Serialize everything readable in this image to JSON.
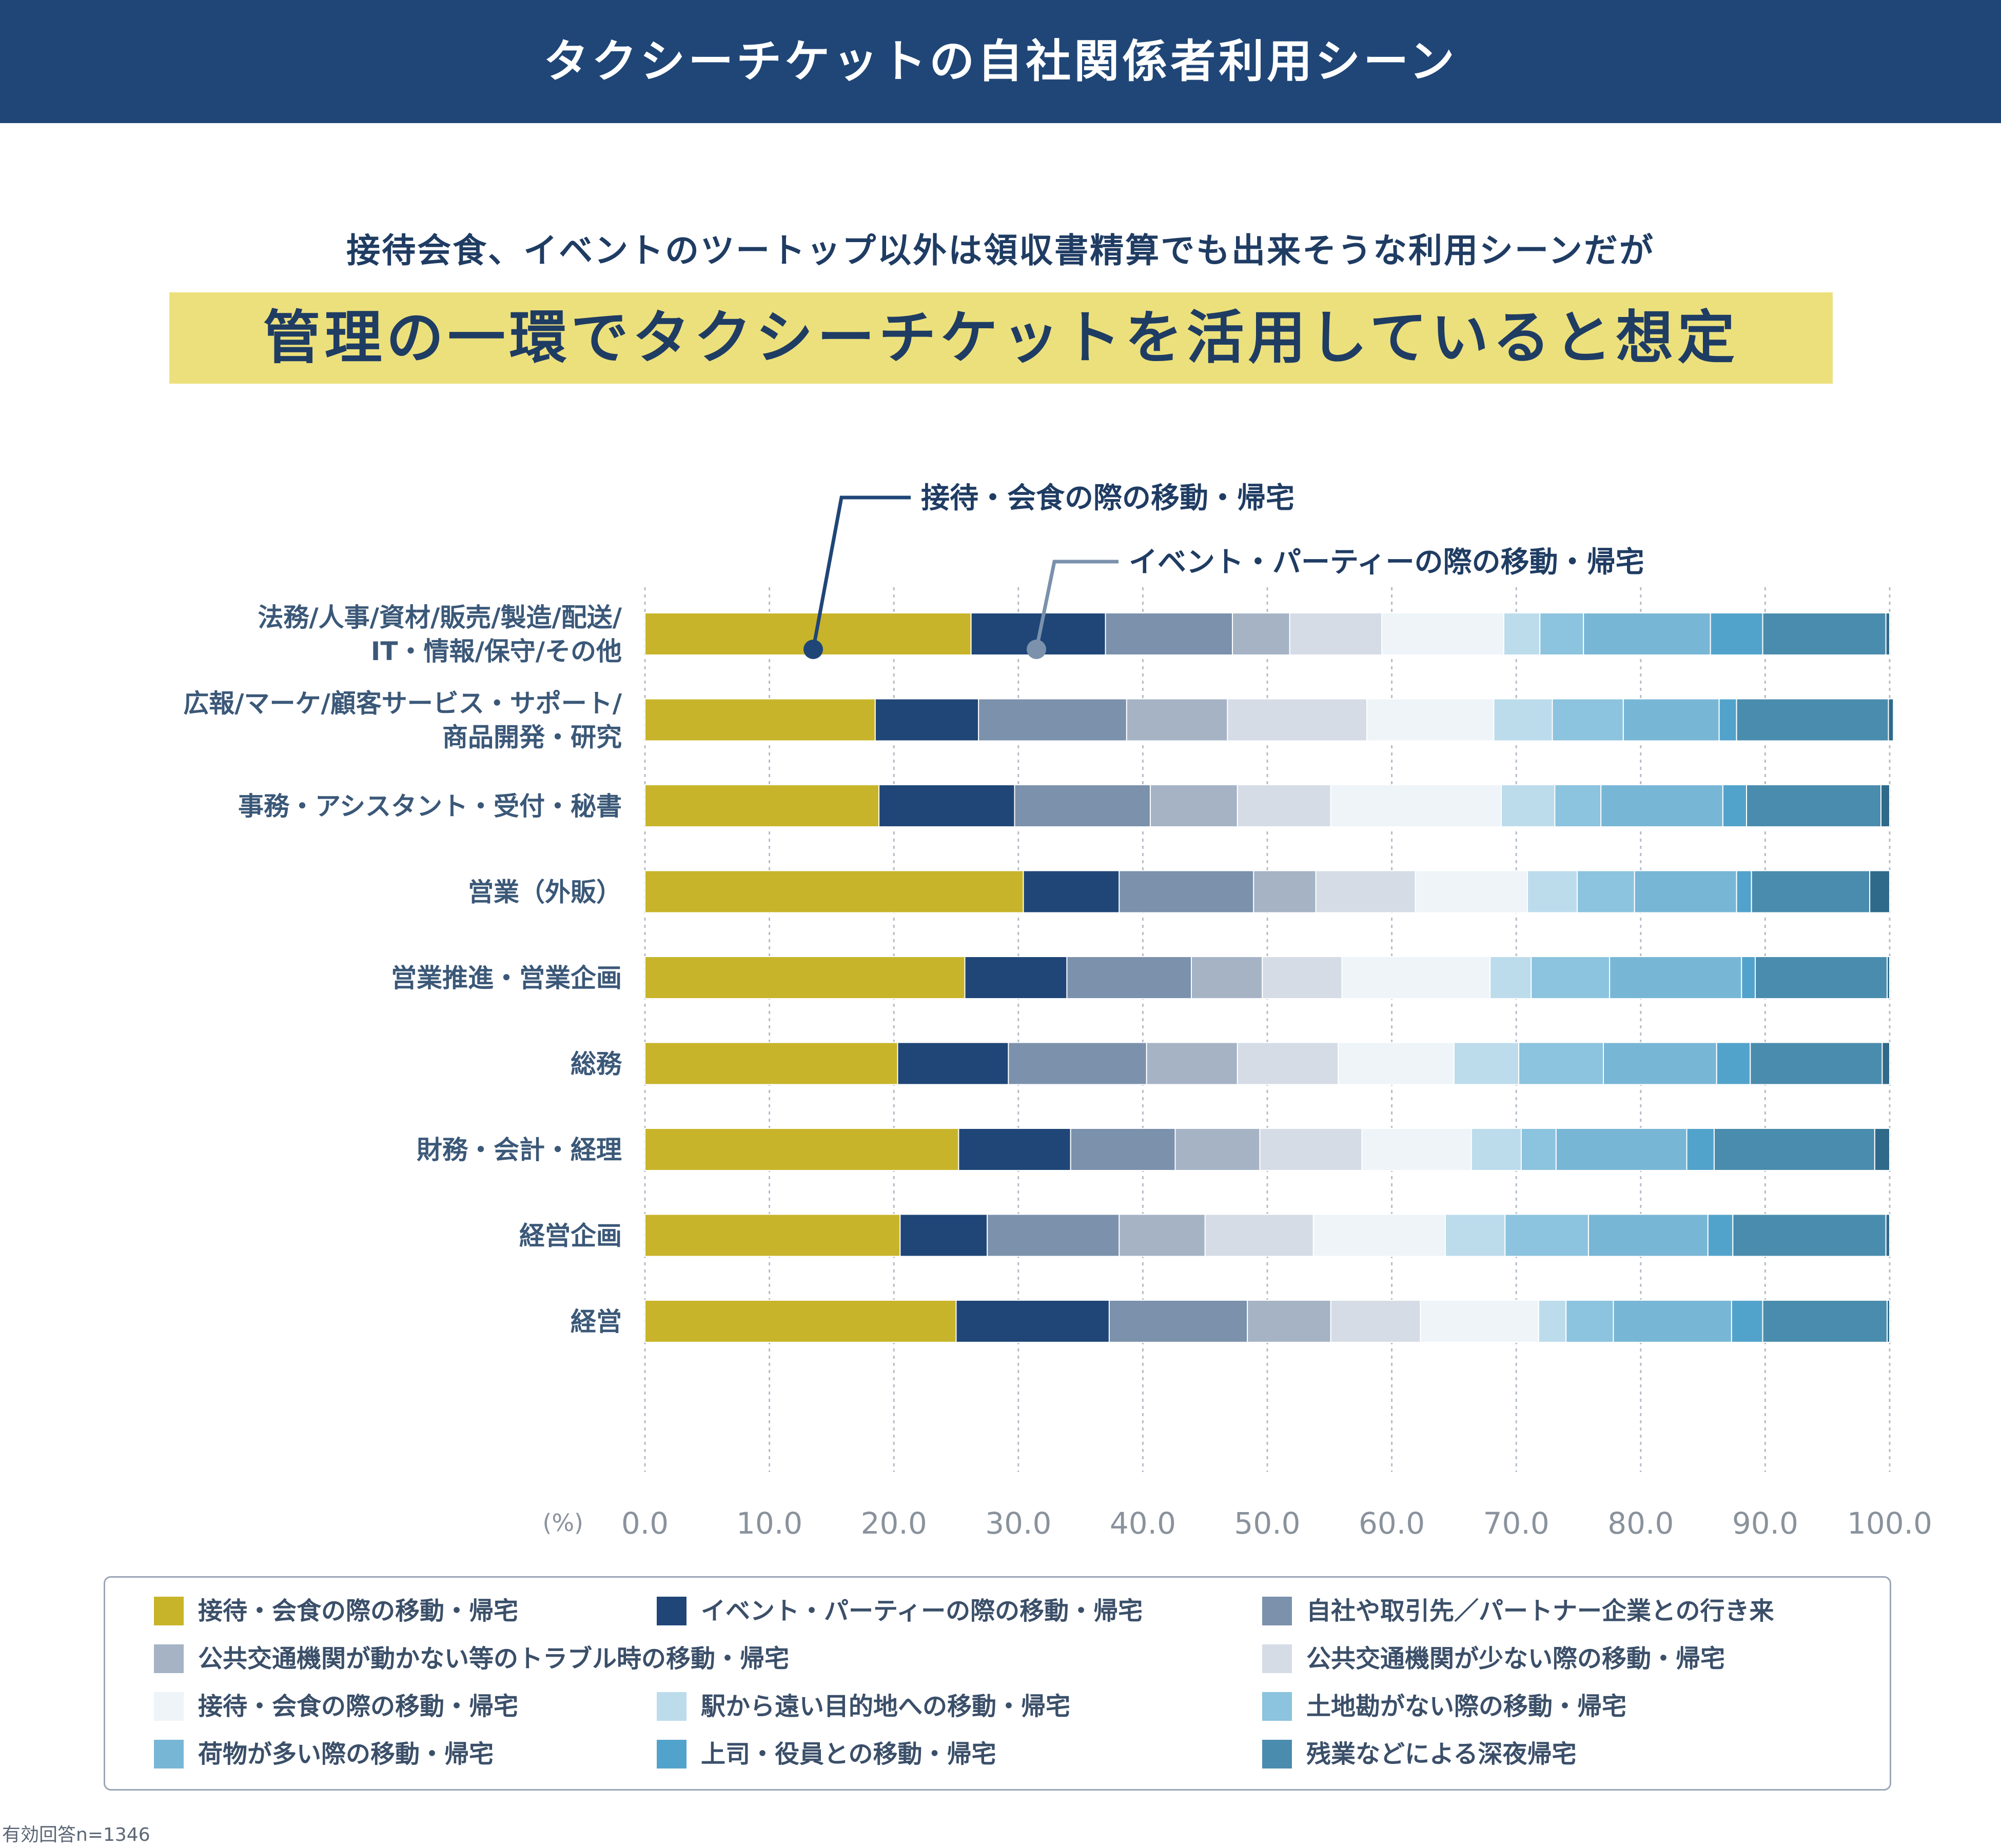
{
  "header": {
    "title": "タクシーチケットの自社関係者利用シーン"
  },
  "subtitle": "接待会食、イベントのツートップ以外は領収書精算でも出来そうな利用シーンだが",
  "headline": "管理の一環でタクシーチケットを活用していると想定",
  "note": "有効回答n=1346",
  "colors": {
    "header_bg": "#1f4677",
    "headline_band": "#ece07c",
    "series": [
      "#c8b42a",
      "#1f4677",
      "#7b91ac",
      "#a5b3c5",
      "#d5dce6",
      "#eef4f8",
      "#bcdcec",
      "#8cc3de",
      "#78b6d6",
      "#52a3cb",
      "#4a8cad",
      "#2f6a8a"
    ]
  },
  "callouts": [
    {
      "label": "接待・会食の際の移動・帰宅",
      "series": 0
    },
    {
      "label": "イベント・パーティーの際の移動・帰宅",
      "series": 1
    }
  ],
  "chart_data": {
    "type": "bar",
    "orientation": "horizontal",
    "stacked": true,
    "unit_label": "(%)",
    "xlim": [
      0,
      100
    ],
    "xticks": [
      "0.0",
      "10.0",
      "20.0",
      "30.0",
      "40.0",
      "50.0",
      "60.0",
      "70.0",
      "80.0",
      "90.0",
      "100.0"
    ],
    "grid": true,
    "categories": [
      {
        "lines": [
          "法務/人事/資材/販売/製造/配送/",
          "IT・情報/保守/その他"
        ]
      },
      {
        "lines": [
          "広報/マーケ/顧客サービス・サポート/",
          "商品開発・研究"
        ]
      },
      {
        "lines": [
          "事務・アシスタント・受付・秘書"
        ]
      },
      {
        "lines": [
          "営業（外販）"
        ]
      },
      {
        "lines": [
          "営業推進・営業企画"
        ]
      },
      {
        "lines": [
          "総務"
        ]
      },
      {
        "lines": [
          "財務・会計・経理"
        ]
      },
      {
        "lines": [
          "経営企画"
        ]
      },
      {
        "lines": [
          "経営"
        ]
      }
    ],
    "series": [
      {
        "name": "接待・会食の際の移動・帰宅",
        "values": [
          26.2,
          18.5,
          18.8,
          30.4,
          25.7,
          20.3,
          25.2,
          20.5,
          25.0
        ]
      },
      {
        "name": "イベント・パーティーの際の移動・帰宅",
        "values": [
          10.8,
          8.3,
          10.9,
          7.7,
          8.2,
          8.9,
          9.0,
          7.0,
          12.3
        ]
      },
      {
        "name": "自社や取引先／パートナー企業との行き来",
        "values": [
          10.2,
          11.9,
          10.9,
          10.8,
          10.0,
          11.1,
          8.4,
          10.6,
          11.1
        ]
      },
      {
        "name": "公共交通機関が動かない等のトラブル時の移動・帰宅",
        "values": [
          4.6,
          8.1,
          7.0,
          5.0,
          5.7,
          7.3,
          6.8,
          6.9,
          6.7
        ]
      },
      {
        "name": "公共交通機関が少ない際の移動・帰宅",
        "values": [
          7.4,
          11.2,
          7.5,
          8.0,
          6.4,
          8.1,
          8.2,
          8.7,
          7.2
        ]
      },
      {
        "name": "接待・会食の際の移動・帰宅",
        "values": [
          9.8,
          10.2,
          13.7,
          9.0,
          11.9,
          9.3,
          8.8,
          10.6,
          9.5
        ]
      },
      {
        "name": "駅から遠い目的地への移動・帰宅",
        "values": [
          2.9,
          4.7,
          4.3,
          4.0,
          3.3,
          5.2,
          4.0,
          4.8,
          2.2
        ]
      },
      {
        "name": "土地勘がない際の移動・帰宅",
        "values": [
          3.5,
          5.7,
          3.7,
          4.6,
          6.3,
          6.8,
          2.8,
          6.7,
          3.8
        ]
      },
      {
        "name": "荷物が多い際の移動・帰宅",
        "values": [
          10.2,
          7.7,
          9.8,
          8.2,
          10.6,
          9.1,
          10.5,
          9.6,
          9.5
        ]
      },
      {
        "name": "上司・役員との移動・帰宅",
        "values": [
          4.2,
          1.4,
          1.9,
          1.2,
          1.1,
          2.7,
          2.2,
          2.0,
          2.5
        ]
      },
      {
        "name": "残業などによる深夜帰宅",
        "values": [
          9.9,
          12.2,
          10.8,
          9.5,
          10.6,
          10.6,
          12.9,
          12.3,
          10.0
        ]
      },
      {
        "name": "",
        "values": [
          0.3,
          0.4,
          0.7,
          1.6,
          0.2,
          0.6,
          1.2,
          0.3,
          0.2
        ]
      }
    ],
    "legend": [
      {
        "label": "接待・会食の際の移動・帰宅",
        "series": 0
      },
      {
        "label": "イベント・パーティーの際の移動・帰宅",
        "series": 1
      },
      {
        "label": "自社や取引先／パートナー企業との行き来",
        "series": 2
      },
      {
        "label": "公共交通機関が動かない等のトラブル時の移動・帰宅",
        "series": 3
      },
      {
        "label": "公共交通機関が少ない際の移動・帰宅",
        "series": 4
      },
      {
        "label": "接待・会食の際の移動・帰宅",
        "series": 5
      },
      {
        "label": "駅から遠い目的地への移動・帰宅",
        "series": 6
      },
      {
        "label": "土地勘がない際の移動・帰宅",
        "series": 7
      },
      {
        "label": "荷物が多い際の移動・帰宅",
        "series": 8
      },
      {
        "label": "上司・役員との移動・帰宅",
        "series": 9
      },
      {
        "label": "残業などによる深夜帰宅",
        "series": 10
      }
    ]
  }
}
